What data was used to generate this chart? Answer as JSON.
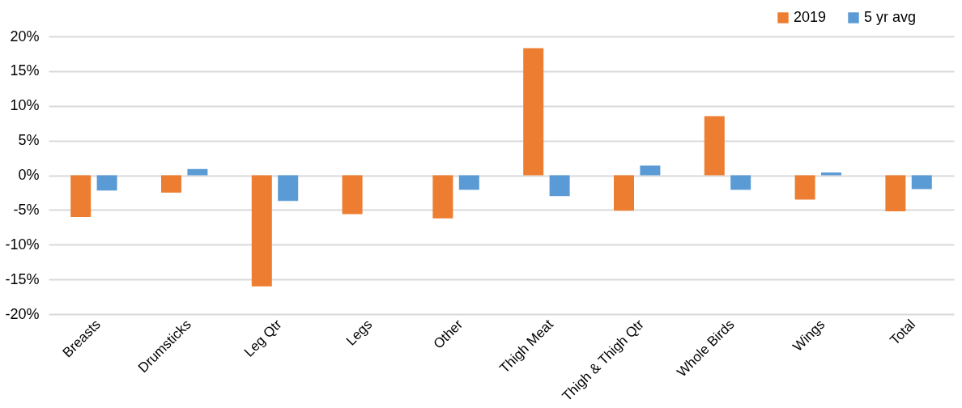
{
  "chart_data": {
    "type": "bar",
    "categories": [
      "Breasts",
      "Drumsticks",
      "Leg Qtr",
      "Legs",
      "Other",
      "Thigh Meat",
      "Thigh & Thigh Qtr",
      "Whole Birds",
      "Wings",
      "Total"
    ],
    "series": [
      {
        "name": "2019",
        "color": "#ed7d31",
        "values": [
          -6.0,
          -2.5,
          -16.0,
          -5.6,
          -6.2,
          18.3,
          -5.1,
          8.5,
          -3.5,
          -5.2
        ]
      },
      {
        "name": "5 yr avg",
        "color": "#5b9bd5",
        "values": [
          -2.2,
          0.9,
          -3.7,
          null,
          -2.1,
          -3.0,
          1.4,
          -2.1,
          0.4,
          -2.0
        ]
      }
    ],
    "ylim": [
      -20,
      20
    ],
    "yticks": [
      {
        "value": -20,
        "label": "-20%"
      },
      {
        "value": -15,
        "label": "-15%"
      },
      {
        "value": -10,
        "label": "-10%"
      },
      {
        "value": -5,
        "label": "-5%"
      },
      {
        "value": 0,
        "label": "0%"
      },
      {
        "value": 5,
        "label": "5%"
      },
      {
        "value": 10,
        "label": "10%"
      },
      {
        "value": 15,
        "label": "15%"
      },
      {
        "value": 20,
        "label": "20%"
      }
    ],
    "grid": "y",
    "legend": "top right"
  }
}
